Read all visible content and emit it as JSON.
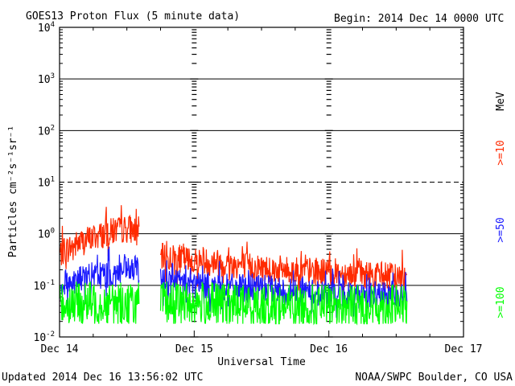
{
  "chart_data": {
    "type": "line",
    "title": "GOES13 Proton Flux (5 minute data)",
    "begin_label": "Begin: 2014 Dec 14 0000 UTC",
    "xlabel": "Universal Time",
    "ylabel": "Particles cm⁻²s⁻¹sr⁻¹",
    "y_scale": "log",
    "ylim": [
      0.01,
      10000
    ],
    "xlim": [
      "2014-12-14",
      "2014-12-17"
    ],
    "x_ticks": [
      "Dec 14",
      "Dec 15",
      "Dec 16",
      "Dec 17"
    ],
    "y_tick_labels": [
      {
        "base": "10",
        "exp": "-2"
      },
      {
        "base": "10",
        "exp": "-1"
      },
      {
        "base": "10",
        "exp": "0"
      },
      {
        "base": "10",
        "exp": "1"
      },
      {
        "base": "10",
        "exp": "2"
      },
      {
        "base": "10",
        "exp": "3"
      },
      {
        "base": "10",
        "exp": "4"
      }
    ],
    "legend_unit": "MeV",
    "gap": [
      "2014-12-14T14:10",
      "2014-12-14T18:00"
    ],
    "series": [
      {
        "name": ">=10",
        "color": "#ff2a00",
        "points": [
          [
            "2014-12-14T00:00",
            0.4
          ],
          [
            "2014-12-14T02:00",
            0.55
          ],
          [
            "2014-12-14T04:00",
            0.7
          ],
          [
            "2014-12-14T06:00",
            0.85
          ],
          [
            "2014-12-14T08:00",
            1.0
          ],
          [
            "2014-12-14T10:00",
            1.15
          ],
          [
            "2014-12-14T12:00",
            1.25
          ],
          [
            "2014-12-14T14:00",
            1.2
          ],
          [
            "2014-12-14T18:00",
            0.35
          ],
          [
            "2014-12-14T21:00",
            0.33
          ],
          [
            "2014-12-15T00:00",
            0.3
          ],
          [
            "2014-12-15T04:00",
            0.28
          ],
          [
            "2014-12-15T08:00",
            0.25
          ],
          [
            "2014-12-15T12:00",
            0.22
          ],
          [
            "2014-12-15T16:00",
            0.2
          ],
          [
            "2014-12-15T20:00",
            0.19
          ],
          [
            "2014-12-16T00:00",
            0.18
          ],
          [
            "2014-12-16T04:00",
            0.17
          ],
          [
            "2014-12-16T08:00",
            0.16
          ],
          [
            "2014-12-16T11:00",
            0.15
          ],
          [
            "2014-12-16T13:55",
            0.15
          ]
        ]
      },
      {
        "name": ">=50",
        "color": "#1a1aff",
        "points": [
          [
            "2014-12-14T00:00",
            0.1
          ],
          [
            "2014-12-14T03:00",
            0.13
          ],
          [
            "2014-12-14T06:00",
            0.15
          ],
          [
            "2014-12-14T09:00",
            0.17
          ],
          [
            "2014-12-14T12:00",
            0.19
          ],
          [
            "2014-12-14T14:00",
            0.2
          ],
          [
            "2014-12-14T18:00",
            0.13
          ],
          [
            "2014-12-15T00:00",
            0.1
          ],
          [
            "2014-12-15T06:00",
            0.09
          ],
          [
            "2014-12-15T12:00",
            0.085
          ],
          [
            "2014-12-15T18:00",
            0.075
          ],
          [
            "2014-12-16T00:00",
            0.07
          ],
          [
            "2014-12-16T06:00",
            0.065
          ],
          [
            "2014-12-16T12:00",
            0.065
          ],
          [
            "2014-12-16T13:55",
            0.06
          ]
        ]
      },
      {
        "name": ">=100",
        "color": "#00ff00",
        "points": [
          [
            "2014-12-14T00:00",
            0.045
          ],
          [
            "2014-12-14T07:00",
            0.045
          ],
          [
            "2014-12-14T14:00",
            0.045
          ],
          [
            "2014-12-14T18:00",
            0.045
          ],
          [
            "2014-12-15T00:00",
            0.045
          ],
          [
            "2014-12-15T12:00",
            0.04
          ],
          [
            "2014-12-16T00:00",
            0.04
          ],
          [
            "2014-12-16T13:55",
            0.04
          ]
        ]
      }
    ]
  },
  "footer": {
    "updated": "Updated 2014 Dec 16 13:56:02 UTC",
    "source": "NOAA/SWPC Boulder, CO USA"
  }
}
